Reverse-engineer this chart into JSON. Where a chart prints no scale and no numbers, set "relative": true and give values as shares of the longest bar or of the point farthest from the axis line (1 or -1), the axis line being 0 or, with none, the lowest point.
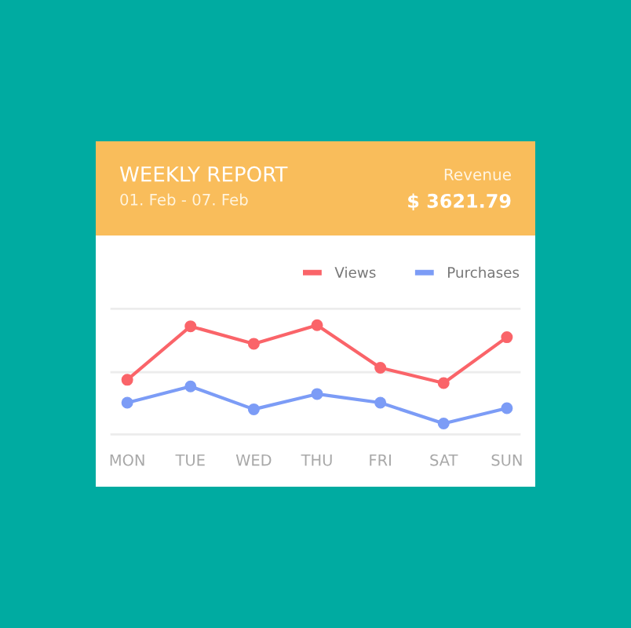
{
  "chart_data": {
    "type": "line",
    "title": "WEEKLY REPORT",
    "subtitle": "01. Feb - 07. Feb",
    "annotations": [
      "Revenue",
      "$ 3621.79"
    ],
    "categories": [
      "MON",
      "TUE",
      "WED",
      "THU",
      "FRI",
      "SAT",
      "SUN"
    ],
    "relative": true,
    "series": [
      {
        "name": "Views",
        "color": "#fa6469",
        "values": [
          0.5,
          0.99,
          0.83,
          1,
          0.61,
          0.47,
          0.89
        ]
      },
      {
        "name": "Purchases",
        "color": "#7c9cf6",
        "values": [
          0.29,
          0.44,
          0.23,
          0.37,
          0.29,
          0.1,
          0.24
        ]
      }
    ],
    "ref_lines": [
      {
        "axis": "y",
        "value": 0.57,
        "color": "#ececec"
      },
      {
        "axis": "y",
        "value": 1.15,
        "color": "#ececec"
      }
    ],
    "legend": "top right",
    "marker": "circle",
    "line_style": "solid"
  }
}
